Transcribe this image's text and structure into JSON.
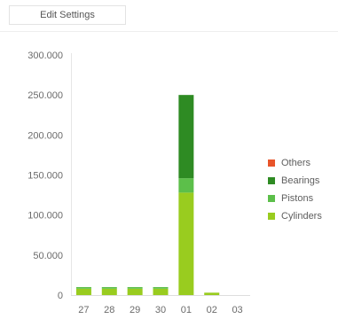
{
  "toolbar": {
    "edit_settings_label": "Edit Settings"
  },
  "chart_data": {
    "type": "bar",
    "stacked": true,
    "categories": [
      "27",
      "28",
      "29",
      "30",
      "01",
      "02",
      "03"
    ],
    "ylim": [
      0,
      300000
    ],
    "y_ticks": [
      "0",
      "50.000",
      "100.000",
      "150.000",
      "200.000",
      "250.000",
      "300.000"
    ],
    "y_tick_values": [
      0,
      50000,
      100000,
      150000,
      200000,
      250000,
      300000
    ],
    "grid": false,
    "legend_position": "right",
    "series": [
      {
        "name": "Cylinders",
        "color": "#99cc1f",
        "values": [
          8000,
          8000,
          8000,
          8000,
          128000,
          3000,
          0
        ]
      },
      {
        "name": "Pistons",
        "color": "#5cbf4a",
        "values": [
          2000,
          2000,
          2000,
          2000,
          18000,
          0,
          0
        ]
      },
      {
        "name": "Bearings",
        "color": "#2e8b23",
        "values": [
          0,
          0,
          0,
          0,
          104000,
          0,
          0
        ]
      },
      {
        "name": "Others",
        "color": "#e8542a",
        "values": [
          0,
          0,
          0,
          0,
          0,
          0,
          0
        ]
      }
    ],
    "legend_order": [
      "Others",
      "Bearings",
      "Pistons",
      "Cylinders"
    ]
  }
}
